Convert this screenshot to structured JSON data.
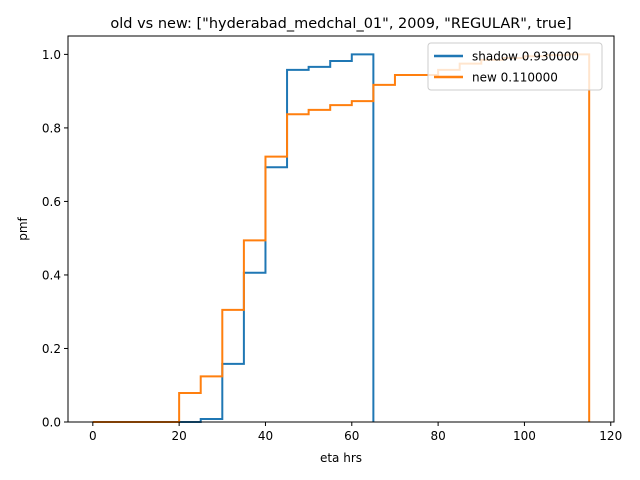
{
  "chart_data": {
    "type": "line",
    "step": true,
    "title": "old vs new: [\"hyderabad_medchal_01\", 2009, \"REGULAR\", true]",
    "xlabel": "eta hrs",
    "ylabel": "pmf",
    "xlim": [
      -5.75,
      120.75
    ],
    "ylim": [
      0,
      1.05
    ],
    "xticks": [
      0,
      20,
      40,
      60,
      80,
      100,
      120
    ],
    "yticks": [
      0.0,
      0.2,
      0.4,
      0.6,
      0.8,
      1.0
    ],
    "xtick_labels": [
      "0",
      "20",
      "40",
      "60",
      "80",
      "100",
      "120"
    ],
    "ytick_labels": [
      "0.0",
      "0.2",
      "0.4",
      "0.6",
      "0.8",
      "1.0"
    ],
    "grid": false,
    "legend": "top-right",
    "series": [
      {
        "name": "shadow 0.930000",
        "color": "#1f77b4",
        "x": [
          0,
          5,
          10,
          15,
          20,
          25,
          30,
          35,
          40,
          45,
          50,
          55,
          60,
          65
        ],
        "y": [
          0,
          0,
          0,
          0,
          0,
          0.008,
          0.158,
          0.406,
          0.693,
          0.958,
          0.966,
          0.982,
          1.0,
          0
        ]
      },
      {
        "name": "new 0.110000",
        "color": "#ff7f0e",
        "x": [
          0,
          5,
          10,
          15,
          20,
          25,
          30,
          35,
          40,
          45,
          50,
          55,
          60,
          65,
          70,
          75,
          80,
          85,
          90,
          95,
          100,
          105,
          110,
          115
        ],
        "y": [
          0,
          0,
          0,
          0,
          0.079,
          0.124,
          0.305,
          0.494,
          0.722,
          0.837,
          0.849,
          0.862,
          0.873,
          0.917,
          0.944,
          0.944,
          0.958,
          0.975,
          0.985,
          0.99,
          0.995,
          0.998,
          1.0,
          0
        ]
      }
    ]
  }
}
